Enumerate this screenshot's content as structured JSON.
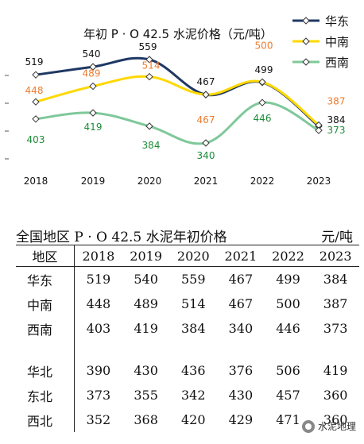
{
  "chart_data": {
    "type": "line",
    "title": "年初 P · O 42.5 水泥价格（元/吨）",
    "categories": [
      "2018",
      "2019",
      "2020",
      "2021",
      "2022",
      "2023"
    ],
    "series": [
      {
        "name": "华东",
        "color": "#1f3864",
        "label_color": "#111111",
        "values": [
          519,
          540,
          559,
          467,
          499,
          384
        ]
      },
      {
        "name": "中南",
        "color": "#ffd800",
        "label_color": "#ed7d31",
        "values": [
          448,
          489,
          514,
          467,
          500,
          387
        ]
      },
      {
        "name": "西南",
        "color": "#7fc89a",
        "label_color": "#1e8c3a",
        "values": [
          403,
          419,
          384,
          340,
          446,
          373
        ]
      }
    ],
    "ylim": [
      300,
      600
    ],
    "legend": "top-right"
  },
  "table": {
    "title": "全国地区 P · O 42.5 水泥年初价格",
    "unit": "元/吨",
    "header": [
      "地区",
      "2018",
      "2019",
      "2020",
      "2021",
      "2022",
      "2023"
    ],
    "groups": [
      [
        [
          "华东",
          "519",
          "540",
          "559",
          "467",
          "499",
          "384"
        ],
        [
          "中南",
          "448",
          "489",
          "514",
          "467",
          "500",
          "387"
        ],
        [
          "西南",
          "403",
          "419",
          "384",
          "340",
          "446",
          "373"
        ]
      ],
      [
        [
          "华北",
          "390",
          "430",
          "436",
          "376",
          "506",
          "419"
        ],
        [
          "东北",
          "373",
          "355",
          "342",
          "430",
          "457",
          "360"
        ],
        [
          "西北",
          "352",
          "368",
          "420",
          "429",
          "471",
          "360"
        ]
      ]
    ]
  },
  "watermark": "水泥地理",
  "icons": {
    "watermark": "wechat-account-icon"
  }
}
